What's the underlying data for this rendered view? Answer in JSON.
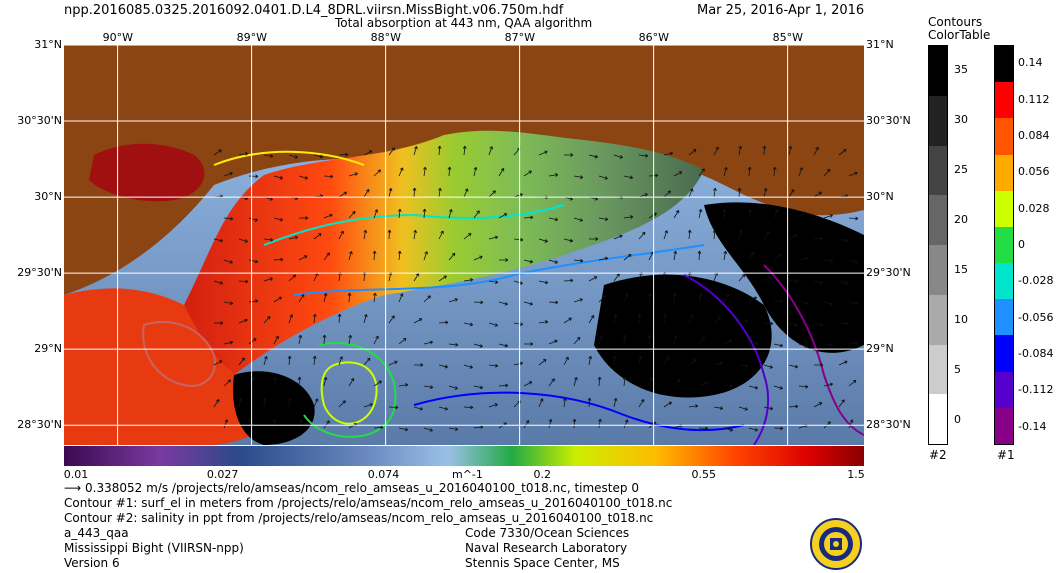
{
  "header": {
    "file_title": "npp.2016085.0325.2016092.0401.D.L4_8DRL.viirsn.MissBight.v06.750m.hdf",
    "date_range": "Mar 25, 2016-Apr  1, 2016",
    "subtitle": "Total absorption at 443 nm, QAA algorithm"
  },
  "map": {
    "lon_ticks": [
      "90°W",
      "89°W",
      "88°W",
      "87°W",
      "86°W",
      "85°W"
    ],
    "lon_values": [
      -90,
      -89,
      -88,
      -87,
      -86,
      -85
    ],
    "lat_ticks": [
      "31°N",
      "30°30'N",
      "30°N",
      "29°30'N",
      "29°N",
      "28°30'N"
    ],
    "lat_values": [
      31.0,
      30.5,
      30.0,
      29.5,
      29.0,
      28.5
    ],
    "lon_range": [
      -90.4,
      -84.43
    ],
    "lat_range": [
      28.37,
      31.0
    ],
    "land_color": "#8b4513",
    "grid_color": "#ffffff"
  },
  "colorbar": {
    "ticks": [
      "0.01",
      "0.027",
      "0.074",
      "0.2",
      "0.55",
      "1.5"
    ],
    "unit": "m^-1",
    "scale": "log",
    "range": [
      0.01,
      1.5
    ]
  },
  "footer": {
    "vector_note": "0.338052 m/s /projects/relo/amseas/ncom_relo_amseas_u_2016040100_t018.nc, timestep 0",
    "contour1_note": "Contour #1: surf_el in meters from /projects/relo/amseas/ncom_relo_amseas_u_2016040100_t018.nc",
    "contour2_note": "Contour #2: salinity in ppt from /projects/relo/amseas/ncom_relo_amseas_u_2016040100_t018.nc",
    "product": "a_443_qaa",
    "region": "Mississippi Bight (VIIRSN-npp)",
    "version": "Version 6",
    "org_code": "Code 7330/Ocean Sciences",
    "org_name": "Naval Research Laboratory",
    "org_place": "Stennis Space Center, MS"
  },
  "contour_legend": {
    "title_line1": "Contours",
    "title_line2": "ColorTable",
    "bar2_ticks": [
      "35",
      "30",
      "25",
      "20",
      "15",
      "10",
      "5",
      "0"
    ],
    "bar2_values": [
      35,
      30,
      25,
      20,
      15,
      10,
      5,
      0
    ],
    "bar2_label": "#2",
    "bar1_ticks": [
      "0.14",
      "0.112",
      "0.084",
      "0.056",
      "0.028",
      "0",
      "-0.028",
      "-0.056",
      "-0.084",
      "-0.112",
      "-0.14"
    ],
    "bar1_values": [
      0.14,
      0.112,
      0.084,
      0.056,
      0.028,
      0,
      -0.028,
      -0.056,
      -0.084,
      -0.112,
      -0.14
    ],
    "bar1_label": "#1",
    "bar1_colors": [
      "#000000",
      "#ff0000",
      "#ff5500",
      "#ffaa00",
      "#ccff00",
      "#22dd44",
      "#00e5cc",
      "#1e90ff",
      "#0000ff",
      "#5500cc",
      "#880088"
    ],
    "bar2_colors": [
      "#000000",
      "#222222",
      "#444444",
      "#666666",
      "#888888",
      "#aaaaaa",
      "#cccccc",
      "#ffffff"
    ]
  }
}
